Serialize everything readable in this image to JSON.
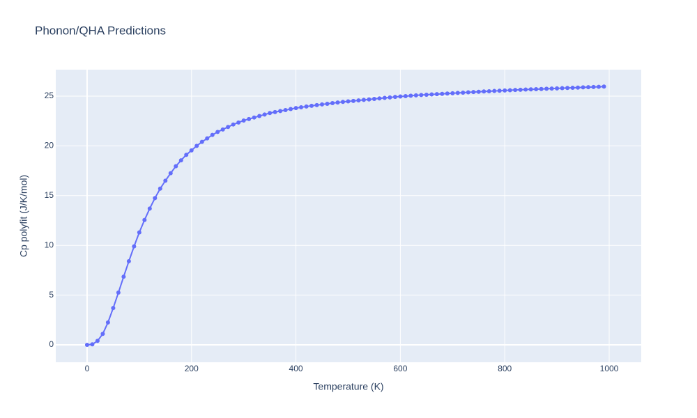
{
  "chart_data": {
    "type": "line",
    "title": "Phonon/QHA Predictions",
    "x_label": "Temperature (K)",
    "y_label": "Cp polyfit (J/K/mol)",
    "x": [
      0,
      10,
      20,
      30,
      40,
      50,
      60,
      70,
      80,
      90,
      100,
      110,
      120,
      130,
      140,
      150,
      160,
      170,
      180,
      190,
      200,
      210,
      220,
      230,
      240,
      250,
      260,
      270,
      280,
      290,
      300,
      310,
      320,
      330,
      340,
      350,
      360,
      370,
      380,
      390,
      400,
      410,
      420,
      430,
      440,
      450,
      460,
      470,
      480,
      490,
      500,
      510,
      520,
      530,
      540,
      550,
      560,
      570,
      580,
      590,
      600,
      610,
      620,
      630,
      640,
      650,
      660,
      670,
      680,
      690,
      700,
      710,
      720,
      730,
      740,
      750,
      760,
      770,
      780,
      790,
      800,
      810,
      820,
      830,
      840,
      850,
      860,
      870,
      880,
      890,
      900,
      910,
      920,
      930,
      940,
      950,
      960,
      970,
      980,
      990
    ],
    "series": [
      {
        "color": "#636efa",
        "values": [
          0,
          0.05,
          0.4,
          1.1,
          2.25,
          3.7,
          5.25,
          6.85,
          8.4,
          9.9,
          11.3,
          12.55,
          13.7,
          14.75,
          15.7,
          16.5,
          17.25,
          17.95,
          18.55,
          19.1,
          19.55,
          20.0,
          20.4,
          20.75,
          21.1,
          21.4,
          21.65,
          21.9,
          22.15,
          22.35,
          22.55,
          22.7,
          22.85,
          23.0,
          23.15,
          23.3,
          23.4,
          23.5,
          23.6,
          23.7,
          23.8,
          23.88,
          23.96,
          24.03,
          24.1,
          24.17,
          24.23,
          24.3,
          24.36,
          24.42,
          24.47,
          24.52,
          24.57,
          24.62,
          24.67,
          24.72,
          24.77,
          24.82,
          24.87,
          24.92,
          24.96,
          25.0,
          25.04,
          25.08,
          25.11,
          25.14,
          25.17,
          25.2,
          25.23,
          25.26,
          25.29,
          25.32,
          25.35,
          25.38,
          25.41,
          25.44,
          25.47,
          25.49,
          25.52,
          25.54,
          25.57,
          25.59,
          25.62,
          25.64,
          25.66,
          25.68,
          25.7,
          25.72,
          25.74,
          25.76,
          25.78,
          25.8,
          25.82,
          25.84,
          25.86,
          25.88,
          25.9,
          25.92,
          25.94,
          25.96
        ]
      }
    ],
    "xlim": [
      -60,
      1061.4
    ],
    "ylim": [
      -1.75,
      27.66
    ],
    "xticks": [
      0,
      200,
      400,
      600,
      800,
      1000
    ],
    "yticks": [
      0,
      5,
      10,
      15,
      20,
      25
    ],
    "grid": true,
    "markers": true
  }
}
